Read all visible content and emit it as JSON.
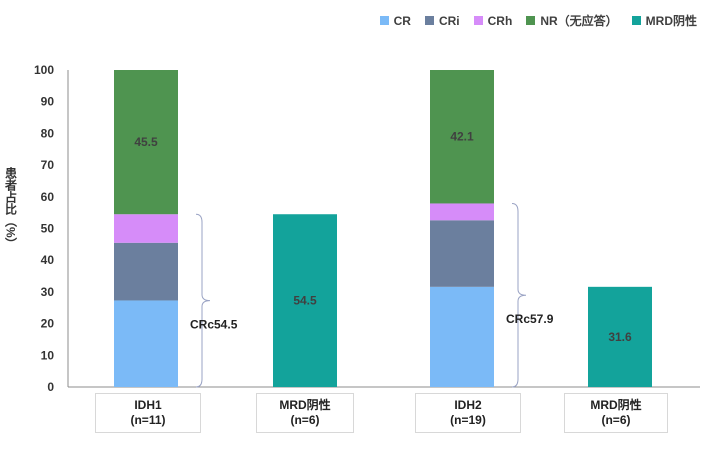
{
  "chart_data": {
    "type": "bar",
    "stacked": true,
    "ylabel": "患者占比（%）",
    "ylim": [
      0,
      100
    ],
    "yticks": [
      0,
      10,
      20,
      30,
      40,
      50,
      60,
      70,
      80,
      90,
      100
    ],
    "legend_position": "top-right",
    "categories": [
      {
        "line1": "IDH1",
        "line2": "(n=11)"
      },
      {
        "line1": "MRD阴性",
        "line2": "(n=6)"
      },
      {
        "line1": "IDH2",
        "line2": "(n=19)"
      },
      {
        "line1": "MRD阴性",
        "line2": "(n=6)"
      }
    ],
    "series": [
      {
        "name": "CR",
        "color": "#7bbaf7",
        "values": [
          27.3,
          null,
          31.6,
          null
        ]
      },
      {
        "name": "CRi",
        "color": "#6b7f9e",
        "values": [
          18.2,
          null,
          21.0,
          null
        ]
      },
      {
        "name": "CRh",
        "color": "#d68cf9",
        "values": [
          9.0,
          null,
          5.3,
          null
        ]
      },
      {
        "name": "NR（无应答）",
        "color": "#4f9450",
        "values": [
          45.5,
          null,
          42.1,
          null
        ]
      },
      {
        "name": "MRD阴性",
        "color": "#13a39b",
        "values": [
          null,
          54.5,
          null,
          31.6
        ]
      }
    ],
    "data_labels": [
      {
        "category": 0,
        "series": "NR（无应答）",
        "text": "45.5"
      },
      {
        "category": 1,
        "series": "MRD阴性",
        "text": "54.5"
      },
      {
        "category": 2,
        "series": "NR（无应答）",
        "text": "42.1"
      },
      {
        "category": 3,
        "series": "MRD阴性",
        "text": "31.6"
      }
    ],
    "annotations": [
      {
        "category": 0,
        "text": "CRc54.5",
        "from": 0,
        "to": 54.5
      },
      {
        "category": 2,
        "text": "CRc57.9",
        "from": 0,
        "to": 57.9
      }
    ]
  }
}
